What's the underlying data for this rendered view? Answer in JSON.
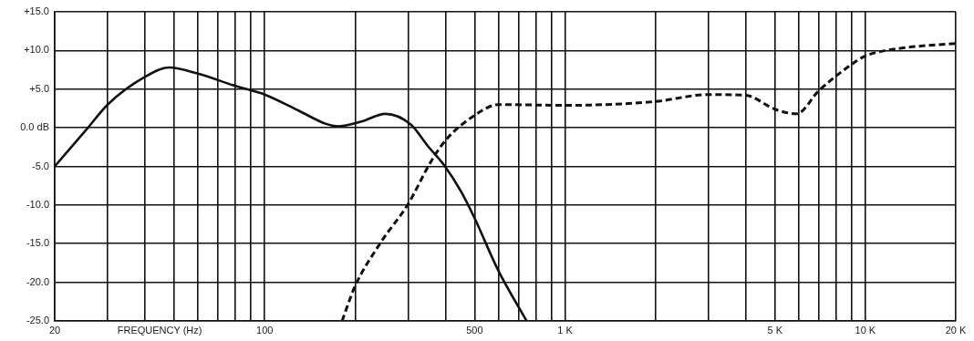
{
  "chart_data": {
    "type": "line",
    "xlabel": "FREQUENCY (Hz)",
    "log": "x",
    "grid": true,
    "legend": false,
    "marker": "none",
    "xlim": [
      20,
      20000
    ],
    "xticks": [
      20,
      {
        "value": 30,
        "label": null
      },
      {
        "value": 40,
        "label": null
      },
      {
        "value": 50,
        "label": null
      },
      {
        "value": 60,
        "label": null
      },
      {
        "value": 70,
        "label": null
      },
      {
        "value": 80,
        "label": null
      },
      {
        "value": 90,
        "label": null
      },
      100,
      {
        "value": 200,
        "label": null
      },
      {
        "value": 300,
        "label": null
      },
      {
        "value": 400,
        "label": null
      },
      500,
      {
        "value": 600,
        "label": null
      },
      {
        "value": 700,
        "label": null
      },
      {
        "value": 800,
        "label": null
      },
      {
        "value": 900,
        "label": null
      },
      {
        "value": 1000,
        "label": "1 K"
      },
      {
        "value": 2000,
        "label": null
      },
      {
        "value": 3000,
        "label": null
      },
      {
        "value": 4000,
        "label": null
      },
      {
        "value": 5000,
        "label": "5 K"
      },
      {
        "value": 6000,
        "label": null
      },
      {
        "value": 7000,
        "label": null
      },
      {
        "value": 8000,
        "label": null
      },
      {
        "value": 9000,
        "label": null
      },
      {
        "value": 10000,
        "label": "10 K"
      },
      {
        "value": 20000,
        "label": "20 K"
      }
    ],
    "ylim": [
      -25,
      15
    ],
    "yticks": [
      {
        "value": 15,
        "label": "+15.0"
      },
      {
        "value": 10,
        "label": "+10.0"
      },
      {
        "value": 5,
        "label": "+5.0"
      },
      {
        "value": 0,
        "label": "0.0 dB"
      },
      {
        "value": -5,
        "label": "-5.0"
      },
      {
        "value": -10,
        "label": "-10.0"
      },
      {
        "value": -15,
        "label": "-15.0"
      },
      {
        "value": -20,
        "label": "-20.0"
      },
      {
        "value": -25,
        "label": "-25.0"
      }
    ],
    "series": [
      {
        "color": "#111111",
        "line_style": "solid",
        "x": [
          20,
          25.8,
          30,
          40,
          48,
          60,
          80,
          100,
          130,
          160,
          175,
          210,
          252,
          307,
          350,
          395,
          450,
          500,
          600,
          745
        ],
        "values": [
          -5,
          0,
          3,
          6.6,
          7.8,
          7,
          5.4,
          4.3,
          2.2,
          0.5,
          0.2,
          0.8,
          1.8,
          0.4,
          -2.4,
          -4.8,
          -8.2,
          -11.7,
          -18.5,
          -25
        ]
      },
      {
        "color": "#111111",
        "line_style": "dashed",
        "x": [
          181,
          200,
          243,
          300,
          360,
          405,
          500,
          600,
          1000,
          2000,
          3000,
          4000,
          5000,
          5900,
          7000,
          9000,
          10000,
          13200,
          20000
        ],
        "values": [
          -25,
          -20.5,
          -14.9,
          -9.9,
          -4.2,
          -1.4,
          1.6,
          3,
          2.9,
          3.4,
          4.3,
          4.2,
          2.4,
          1.8,
          4.8,
          8.2,
          9.3,
          10.3,
          10.9
        ]
      }
    ]
  }
}
